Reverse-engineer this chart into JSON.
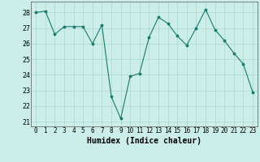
{
  "x": [
    0,
    1,
    2,
    3,
    4,
    5,
    6,
    7,
    8,
    9,
    10,
    11,
    12,
    13,
    14,
    15,
    16,
    17,
    18,
    19,
    20,
    21,
    22,
    23
  ],
  "y": [
    28,
    28.1,
    26.6,
    27.1,
    27.1,
    27.1,
    26.0,
    27.2,
    22.6,
    21.2,
    23.9,
    24.1,
    26.4,
    27.7,
    27.3,
    26.5,
    25.9,
    27.0,
    28.2,
    26.9,
    26.2,
    25.4,
    24.7,
    22.9
  ],
  "xlabel": "Humidex (Indice chaleur)",
  "ylim": [
    20.7,
    28.7
  ],
  "xlim": [
    -0.5,
    23.5
  ],
  "yticks": [
    21,
    22,
    23,
    24,
    25,
    26,
    27,
    28
  ],
  "xticks": [
    0,
    1,
    2,
    3,
    4,
    5,
    6,
    7,
    8,
    9,
    10,
    11,
    12,
    13,
    14,
    15,
    16,
    17,
    18,
    19,
    20,
    21,
    22,
    23
  ],
  "xtick_labels": [
    "0",
    "1",
    "2",
    "3",
    "4",
    "5",
    "6",
    "7",
    "8",
    "9",
    "10",
    "11",
    "12",
    "13",
    "14",
    "15",
    "16",
    "17",
    "18",
    "19",
    "20",
    "21",
    "22",
    "23"
  ],
  "line_color": "#1a7a6e",
  "marker_color": "#1a7a6e",
  "bg_color": "#cceee8",
  "grid_color": "#aad8d0",
  "fig_bg": "#cceee8"
}
